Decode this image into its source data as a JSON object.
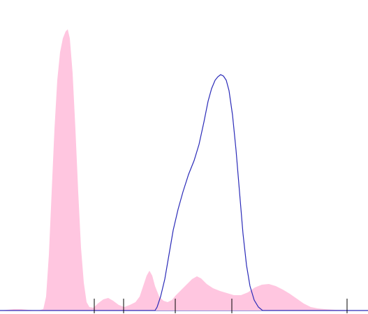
{
  "chart_data": {
    "type": "area_line",
    "xlim": [
      0,
      527
    ],
    "ylim": [
      0,
      445
    ],
    "xticks": [
      135,
      177,
      251,
      332,
      497
    ],
    "series": [
      {
        "kind": "area",
        "color": "#ffc6e0",
        "x": [
          0,
          10,
          20,
          30,
          40,
          55,
          62,
          66,
          70,
          74,
          78,
          82,
          86,
          90,
          94,
          97,
          100,
          104,
          108,
          112,
          116,
          120,
          124,
          128,
          134,
          140,
          148,
          155,
          162,
          170,
          178,
          186,
          194,
          200,
          205,
          210,
          214,
          218,
          222,
          228,
          234,
          240,
          246,
          252,
          260,
          268,
          275,
          282,
          288,
          296,
          305,
          315,
          325,
          335,
          345,
          355,
          365,
          375,
          385,
          395,
          405,
          415,
          425,
          435,
          445,
          455,
          465,
          480,
          500,
          527
        ],
        "values": [
          0,
          1,
          2,
          2,
          1,
          0,
          2,
          20,
          80,
          170,
          260,
          330,
          370,
          390,
          400,
          403,
          390,
          340,
          260,
          170,
          90,
          40,
          12,
          5,
          4,
          10,
          16,
          18,
          14,
          8,
          5,
          8,
          12,
          20,
          35,
          50,
          57,
          50,
          35,
          20,
          14,
          12,
          15,
          22,
          30,
          38,
          45,
          49,
          46,
          38,
          32,
          28,
          25,
          22,
          22,
          26,
          33,
          37,
          38,
          35,
          30,
          24,
          17,
          10,
          5,
          3,
          2,
          1,
          0.5,
          0
        ]
      },
      {
        "kind": "line",
        "color": "#2a2ab8",
        "x": [
          0,
          222,
          225,
          230,
          236,
          242,
          248,
          255,
          262,
          270,
          278,
          285,
          292,
          298,
          303,
          308,
          312,
          316,
          320,
          324,
          328,
          333,
          338,
          343,
          348,
          353,
          358,
          364,
          370,
          376,
          527
        ],
        "values": [
          0,
          0,
          5,
          20,
          45,
          80,
          115,
          145,
          170,
          195,
          215,
          238,
          270,
          300,
          318,
          330,
          335,
          338,
          336,
          330,
          315,
          280,
          230,
          170,
          110,
          65,
          35,
          15,
          5,
          0,
          0
        ]
      }
    ]
  }
}
